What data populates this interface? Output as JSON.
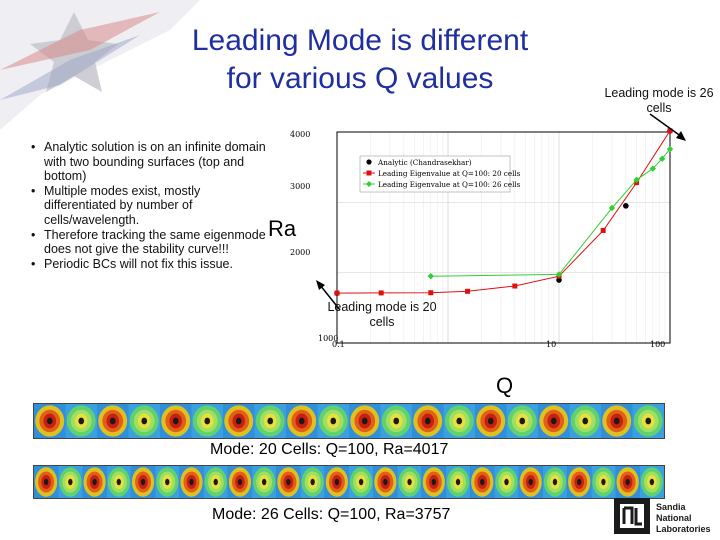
{
  "slide": {
    "title_line1": "Leading Mode is different",
    "title_line2": "for various Q values",
    "bullets": [
      "Analytic solution is on an infinite domain with two bounding surfaces (top and bottom)",
      "Multiple modes exist, mostly differentiated by number of cells/wavelength.",
      "Therefore tracking the same eigenmode does not give the stability curve!!!",
      "Periodic BCs will not fix this issue."
    ],
    "annotation_right": "Leading mode is 26 cells",
    "annotation_left": "Leading mode is 20 cells",
    "caption_20": "Mode: 20 Cells: Q=100, Ra=4017",
    "caption_26": "Mode: 26 Cells: Q=100, Ra=3757",
    "logo_text": [
      "Sandia",
      "National",
      "Laboratories"
    ]
  },
  "colors": {
    "title": "#1f2fa0",
    "analytic": "#000000",
    "cells20": "#e01010",
    "cells26": "#30d030"
  },
  "chart_data": {
    "type": "scatter",
    "xscale": "log",
    "xlim": [
      0.1,
      100
    ],
    "ylim": [
      1000,
      4000
    ],
    "xlabel": "Q",
    "ylabel": "Ra",
    "x_ticks": [
      "1000",
      "0.1",
      "10",
      "100"
    ],
    "y_ticks": [
      "4000",
      "3000",
      "2000"
    ],
    "legend_position": "top-left",
    "series": [
      {
        "name": "Analytic (Chandrasekhar)",
        "marker": "circle",
        "color": "#000000",
        "points": [
          [
            0.1,
            1708
          ],
          [
            10,
            1895
          ],
          [
            40,
            2950
          ],
          [
            100,
            4017
          ]
        ]
      },
      {
        "name": "Leading Eigenvalue at Q=100: 20 cells",
        "marker": "square",
        "color": "#e01010",
        "points": [
          [
            0.1,
            1710
          ],
          [
            0.25,
            1712
          ],
          [
            0.7,
            1715
          ],
          [
            1.5,
            1735
          ],
          [
            4,
            1810
          ],
          [
            10,
            1950
          ],
          [
            25,
            2600
          ],
          [
            50,
            3280
          ],
          [
            100,
            4017
          ]
        ]
      },
      {
        "name": "Leading Eigenvalue at Q=100: 26 cells",
        "marker": "diamond",
        "color": "#30d030",
        "points": [
          [
            0.7,
            1950
          ],
          [
            10,
            1975
          ],
          [
            30,
            2920
          ],
          [
            50,
            3320
          ],
          [
            70,
            3480
          ],
          [
            85,
            3620
          ],
          [
            100,
            3757
          ]
        ]
      }
    ]
  }
}
